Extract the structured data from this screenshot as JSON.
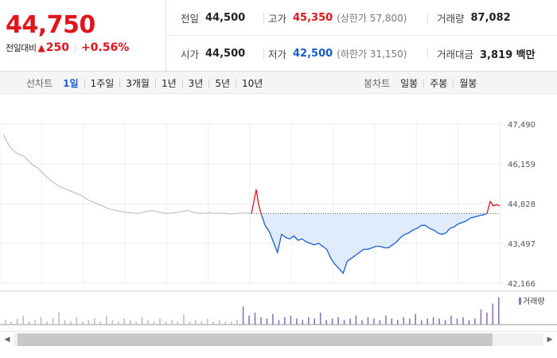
{
  "quote": {
    "price": "44,750",
    "change_label": "전일대비",
    "change_icon": "▲",
    "change_amount": "250",
    "change_rate": "+0.56%",
    "stats": {
      "prev_close": {
        "label": "전일",
        "value": "44,500"
      },
      "high": {
        "label": "고가",
        "value": "45,350",
        "sub": "(상한가 57,800)"
      },
      "volume": {
        "label": "거래량",
        "value": "87,082"
      },
      "open": {
        "label": "시가",
        "value": "44,500"
      },
      "low": {
        "label": "저가",
        "value": "42,500",
        "sub": "(하한가 31,150)"
      },
      "trade_value": {
        "label": "거래대금",
        "value": "3,819 백만"
      }
    }
  },
  "periods": {
    "title": "선차트",
    "items": [
      "1일",
      "1주일",
      "3개월",
      "1년",
      "3년",
      "5년",
      "10년"
    ],
    "active": "1일"
  },
  "candle": {
    "title": "봉차트",
    "items": [
      "일봉",
      "주봉",
      "월봉"
    ]
  },
  "colors": {
    "up": "#e3131b",
    "down": "#1a5cd3",
    "prev_day_line": "#b4b4b4",
    "volume": "#8b75b8"
  },
  "chart_data": {
    "type": "line",
    "y_ticks": [
      "47,490",
      "46,159",
      "44,828",
      "43,497",
      "42,166"
    ],
    "ylim": [
      42166,
      47490
    ],
    "baseline": 44500,
    "volume_legend": "거래량",
    "series": [
      {
        "values": [
          47150,
          46700,
          46500,
          46400,
          46150,
          46000,
          45750,
          45550,
          45400,
          45300,
          45200,
          45100,
          44950,
          44850,
          44750,
          44650,
          44600,
          44550,
          44520,
          44500,
          44560,
          44600,
          44540,
          44500,
          44520,
          44560,
          44600,
          44530,
          44500,
          44520,
          44500,
          44510,
          44480,
          44500,
          44520,
          44500
        ]
      },
      {
        "values": [
          44500,
          44900,
          45300,
          44800,
          44500
        ]
      },
      {
        "values": [
          44500,
          44100,
          43900,
          43550,
          43200,
          43800,
          43700,
          43650,
          43750,
          43600,
          43650,
          43550,
          43500,
          43450,
          43500,
          43400,
          43300,
          43000,
          42800,
          42650,
          42500,
          42900,
          43000,
          43100,
          43200,
          43300,
          43300,
          43350,
          43400,
          43400,
          43350,
          43350,
          43450,
          43550,
          43700,
          43800,
          43850,
          43950,
          44000,
          44100,
          44100,
          44000,
          43950,
          43850,
          43800,
          43850,
          44000,
          44050,
          44150,
          44200,
          44250,
          44350,
          44380,
          44420,
          44450,
          44500
        ]
      },
      {
        "values": [
          44500,
          44900,
          44750,
          44800,
          44750
        ]
      }
    ],
    "volume": [
      3,
      2,
      4,
      6,
      2,
      3,
      5,
      2,
      4,
      8,
      3,
      2,
      5,
      2,
      3,
      4,
      2,
      6,
      3,
      2,
      4,
      3,
      2,
      5,
      3,
      2,
      4,
      2,
      3,
      2,
      7,
      2,
      3,
      2,
      4,
      2,
      3,
      2,
      2,
      3,
      12,
      6,
      8,
      5,
      4,
      7,
      3,
      5,
      6,
      4,
      3,
      5,
      4,
      8,
      3,
      4,
      5,
      3,
      4,
      6,
      3,
      5,
      4,
      3,
      6,
      4,
      3,
      5,
      4,
      7,
      3,
      4,
      5,
      4,
      3,
      6,
      4,
      5,
      3,
      4,
      10,
      8,
      14,
      18
    ]
  },
  "scroll": {
    "left_icon": "◀",
    "right_icon": "▶"
  }
}
